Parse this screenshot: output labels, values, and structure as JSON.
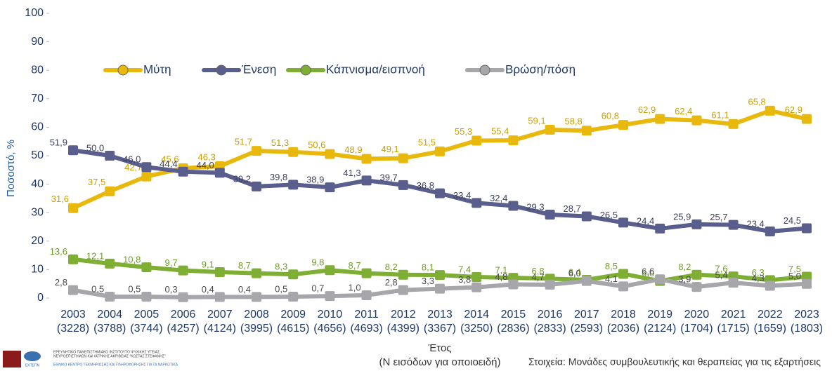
{
  "chart_data": {
    "type": "line",
    "y_label": "Ποσοστό, %",
    "x_label": "Έτος",
    "x_sublabel": "(Ν εισόδων για οποιοειδή)",
    "source": "Στοιχεία: Μονάδες συμβουλευτικής και θεραπείας για τις εξαρτήσεις",
    "logo_texts": [
      "ΕΡΕΥΝΗΤΙΚΟ ΠΑΝΕΠΙΣΤΗΜΙΑΚΟ ΙΝΣΤΙΤΟΥΤΟ ΨΥΧΙΚΗΣ ΥΓΕΙΑΣ,",
      "ΝΕΥΡΟΕΠΙΣΤΗΜΩΝ ΚΑΙ ΙΑΤΡΙΚΗΣ ΑΚΡΙΒΕΙΑΣ \"ΚΩΣΤΑΣ ΣΤΕΦΑΝΗΣ\"",
      "ΕΘΝΙΚΟ ΚΕΝΤΡΟ ΤΕΚΜΗΡΙΩΣΗΣ ΚΑΙ ΠΛΗΡΟΦΟΡΗΣΗΣ ΓΙΑ ΤΑ ΝΑΡΚΩΤΙΚΑ",
      "ΕΚΤΕΠΝ"
    ],
    "categories": [
      "2003",
      "2004",
      "2005",
      "2006",
      "2007",
      "2008",
      "2009",
      "2010",
      "2011",
      "2012",
      "2013",
      "2014",
      "2015",
      "2016",
      "2017",
      "2018",
      "2019",
      "2020",
      "2021",
      "2022",
      "2023"
    ],
    "sample_sizes": [
      "(3228)",
      "(3788)",
      "(3744)",
      "(4257)",
      "(4124)",
      "(3995)",
      "(4615)",
      "(4656)",
      "(4693)",
      "(4399)",
      "(3367)",
      "(3250)",
      "(2836)",
      "(2833)",
      "(2593)",
      "(2036)",
      "(2124)",
      "(1704)",
      "(1715)",
      "(1659)",
      "(1803)"
    ],
    "series": [
      {
        "name": "Μύτη",
        "color": "#e8b90c",
        "values": [
          31.6,
          37.5,
          42.7,
          45.6,
          46.3,
          51.7,
          51.3,
          50.6,
          48.9,
          49.1,
          51.5,
          55.3,
          55.4,
          59.1,
          58.8,
          60.8,
          62.9,
          62.4,
          61.1,
          65.8,
          62.9
        ],
        "value_labels": [
          "31,6",
          "37,5",
          "42,7",
          "45,6",
          "46,3",
          "51,7",
          "51,3",
          "50,6",
          "48,9",
          "49,1",
          "51,5",
          "55,3",
          "55,4",
          "59,1",
          "58,8",
          "60,8",
          "62,9",
          "62,4",
          "61,1",
          "65,8",
          "62,9"
        ]
      },
      {
        "name": "Ένεση",
        "color": "#5a5e8c",
        "values": [
          51.9,
          50.0,
          46.0,
          44.4,
          44.0,
          39.2,
          39.8,
          38.9,
          41.3,
          39.7,
          36.8,
          33.4,
          32.4,
          29.3,
          28.7,
          26.5,
          24.4,
          25.9,
          25.7,
          23.4,
          24.5
        ],
        "value_labels": [
          "51,9",
          "50,0",
          "46,0",
          "44,4",
          "44,0",
          "39,2",
          "39,8",
          "38,9",
          "41,3",
          "39,7",
          "36,8",
          "33,4",
          "32,4",
          "29,3",
          "28,7",
          "26,5",
          "24,4",
          "25,9",
          "25,7",
          "23,4",
          "24,5"
        ]
      },
      {
        "name": "Κάπνισμα/εισπνοή",
        "color": "#7fae35",
        "values": [
          13.6,
          12.1,
          10.8,
          9.7,
          9.1,
          8.7,
          8.3,
          9.8,
          8.7,
          8.2,
          8.1,
          7.4,
          7.1,
          6.8,
          6.4,
          8.5,
          6.0,
          8.2,
          7.6,
          6.3,
          7.5
        ],
        "value_labels": [
          "13,6",
          "12,1",
          "10,8",
          "9,7",
          "9,1",
          "8,7",
          "8,3",
          "9,8",
          "8,7",
          "8,2",
          "8,1",
          "7,4",
          "7,1",
          "6,8",
          "6,4",
          "8,5",
          "6,0",
          "8,2",
          "7,6",
          "6,3",
          "7,5"
        ]
      },
      {
        "name": "Βρώση/πόση",
        "color": "#a6a6ab",
        "values": [
          2.8,
          0.5,
          0.5,
          0.3,
          0.4,
          0.4,
          0.5,
          0.7,
          1.0,
          2.8,
          3.3,
          3.8,
          4.8,
          4.7,
          6.0,
          4.1,
          6.6,
          3.9,
          5.4,
          4.3,
          5.0
        ],
        "value_labels": [
          "2,8",
          "0,5",
          "0,5",
          "0,3",
          "0,4",
          "0,4",
          "0,5",
          "0,7",
          "1,0",
          "2,8",
          "3,3",
          "3,8",
          "4,8",
          "4,7",
          "6,0",
          "4,1",
          "6,6",
          "3,9",
          "5,4",
          "4,3",
          "5,0"
        ]
      }
    ],
    "ylim": [
      0,
      100
    ],
    "yticks": [
      0,
      10,
      20,
      30,
      40,
      50,
      60,
      70,
      80,
      90,
      100
    ],
    "grid": false
  }
}
